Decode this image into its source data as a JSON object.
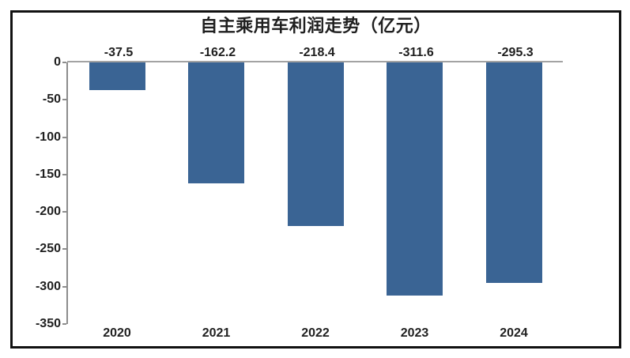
{
  "chart_data": {
    "type": "bar",
    "title": "自主乘用车利润走势（亿元）",
    "categories": [
      "2020",
      "2021",
      "2022",
      "2023",
      "2024"
    ],
    "values": [
      -37.5,
      -162.2,
      -218.4,
      -311.6,
      -295.3
    ],
    "data_labels": [
      "-37.5",
      "-162.2",
      "-218.4",
      "-311.6",
      "-295.3"
    ],
    "xlabel": "",
    "ylabel": "",
    "ylim": [
      -350,
      0
    ],
    "y_ticks": [
      0,
      -50,
      -100,
      -150,
      -200,
      -250,
      -300,
      -350
    ],
    "grid": false,
    "legend_position": "none",
    "bar_color": "#3A6494",
    "text_color": "#1F1F1F",
    "axis_color": "#8C8C8C",
    "zero_line_color": "#A3A3A3",
    "frame_border_color": "#111111"
  }
}
